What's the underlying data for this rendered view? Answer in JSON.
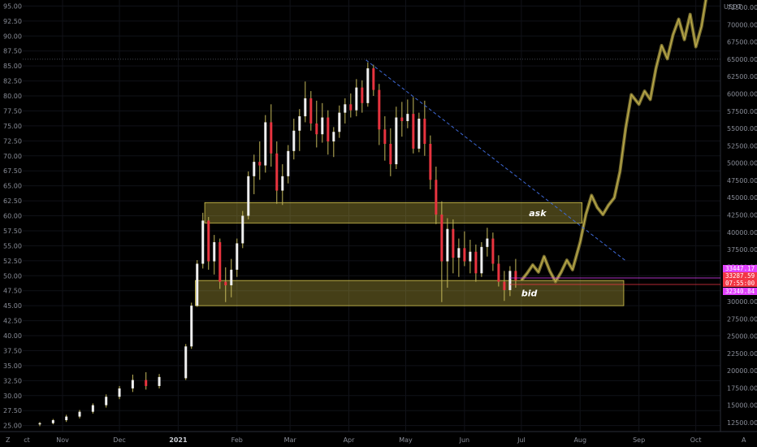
{
  "toolbar": {
    "currency": "USDT",
    "right_axis_marker": "A",
    "left_axis_marker": "Z"
  },
  "chart_data": {
    "type": "candlestick",
    "x": [
      "Nov",
      "Dec",
      "2021",
      "Feb",
      "Mar",
      "Apr",
      "May",
      "Jun",
      "Jul",
      "Aug",
      "Sep",
      "Oct"
    ],
    "x_ticks_bold": [
      "2021"
    ],
    "x_range": [
      "Oct 2020",
      "Oct 2021"
    ],
    "left_axis": {
      "ylim": [
        24,
        96
      ],
      "ticks": [
        "25.00",
        "27.50",
        "30.00",
        "32.50",
        "35.00",
        "37.50",
        "40.00",
        "42.50",
        "45.00",
        "47.50",
        "50.00",
        "52.50",
        "55.00",
        "57.50",
        "60.00",
        "62.50",
        "65.00",
        "67.50",
        "70.00",
        "72.50",
        "75.00",
        "77.50",
        "80.00",
        "82.50",
        "85.00",
        "87.50",
        "90.00",
        "92.50",
        "95.00"
      ]
    },
    "right_axis": {
      "ylim": [
        10000,
        75000
      ],
      "ticks": [
        "12500.00",
        "15000.00",
        "17500.00",
        "20000.00",
        "22500.00",
        "25000.00",
        "27500.00",
        "30000.00",
        "32500.00",
        "35000.00",
        "37500.00",
        "40000.00",
        "42500.00",
        "45000.00",
        "47500.00",
        "50000.00",
        "52500.00",
        "55000.00",
        "57500.00",
        "60000.00",
        "62500.00",
        "65000.00",
        "67500.00",
        "70000.00",
        "72500.00"
      ]
    },
    "price_tags": [
      {
        "value": "33447.17",
        "color": "#e040fb"
      },
      {
        "value": "33287.59",
        "color": "#f23645"
      },
      {
        "value": "07:55:00",
        "color": "#f23645"
      },
      {
        "value": "32340.84",
        "color": "#e040fb"
      }
    ],
    "zones": [
      {
        "label": "ask",
        "from": 58.8,
        "to": 62.2
      },
      {
        "label": "bid",
        "from": 45.0,
        "to": 49.2
      }
    ],
    "trendline": {
      "from": {
        "x": "Apr 10",
        "y": 86.0
      },
      "to": {
        "x": "Aug 25",
        "y": 52.5
      },
      "style": "dashed",
      "color": "#3f6ad8"
    },
    "reference_line": {
      "y": 65000,
      "axis": "right"
    },
    "candles_series": [
      {
        "d": "Oct 20",
        "o": 25.2,
        "h": 25.6,
        "l": 24.9,
        "c": 25.4
      },
      {
        "d": "Oct 27",
        "o": 25.4,
        "h": 26.1,
        "l": 25.2,
        "c": 25.9
      },
      {
        "d": "Nov 03",
        "o": 25.9,
        "h": 26.8,
        "l": 25.6,
        "c": 26.5
      },
      {
        "d": "Nov 10",
        "o": 26.5,
        "h": 27.6,
        "l": 26.2,
        "c": 27.3
      },
      {
        "d": "Nov 17",
        "o": 27.3,
        "h": 28.7,
        "l": 27.0,
        "c": 28.4
      },
      {
        "d": "Nov 24",
        "o": 28.4,
        "h": 30.2,
        "l": 28.0,
        "c": 29.8
      },
      {
        "d": "Dec 01",
        "o": 29.8,
        "h": 31.6,
        "l": 29.4,
        "c": 31.2
      },
      {
        "d": "Dec 08",
        "o": 31.2,
        "h": 33.5,
        "l": 30.6,
        "c": 32.6
      },
      {
        "d": "Dec 15",
        "o": 32.6,
        "h": 33.9,
        "l": 31.0,
        "c": 31.6
      },
      {
        "d": "Dec 22",
        "o": 31.6,
        "h": 33.6,
        "l": 31.2,
        "c": 33.1
      },
      {
        "d": "Dec 29",
        "o": 33.1,
        "h": 34.0,
        "l": 32.4,
        "c": 32.9
      },
      {
        "d": "Jan 05",
        "o": 32.9,
        "h": 38.6,
        "l": 32.6,
        "c": 38.2
      },
      {
        "d": "Jan 08",
        "o": 38.2,
        "h": 45.5,
        "l": 37.8,
        "c": 45.0
      },
      {
        "d": "Jan 11",
        "o": 45.0,
        "h": 52.6,
        "l": 44.8,
        "c": 52.0
      },
      {
        "d": "Jan 14",
        "o": 52.0,
        "h": 60.5,
        "l": 51.2,
        "c": 59.2
      },
      {
        "d": "Jan 17",
        "o": 59.2,
        "h": 59.8,
        "l": 51.0,
        "c": 52.4
      },
      {
        "d": "Jan 20",
        "o": 52.4,
        "h": 56.8,
        "l": 50.2,
        "c": 55.6
      },
      {
        "d": "Jan 23",
        "o": 55.6,
        "h": 56.2,
        "l": 47.8,
        "c": 49.0
      },
      {
        "d": "Jan 26",
        "o": 49.0,
        "h": 51.4,
        "l": 45.6,
        "c": 48.4
      },
      {
        "d": "Jan 29",
        "o": 48.4,
        "h": 52.8,
        "l": 46.4,
        "c": 51.0
      },
      {
        "d": "Feb 01",
        "o": 51.0,
        "h": 56.2,
        "l": 49.8,
        "c": 55.4
      },
      {
        "d": "Feb 04",
        "o": 55.4,
        "h": 60.8,
        "l": 54.6,
        "c": 60.0
      },
      {
        "d": "Feb 07",
        "o": 60.0,
        "h": 67.4,
        "l": 59.4,
        "c": 66.6
      },
      {
        "d": "Feb 10",
        "o": 66.6,
        "h": 70.2,
        "l": 63.6,
        "c": 69.0
      },
      {
        "d": "Feb 13",
        "o": 69.0,
        "h": 72.4,
        "l": 66.0,
        "c": 68.4
      },
      {
        "d": "Feb 16",
        "o": 68.4,
        "h": 76.8,
        "l": 67.2,
        "c": 75.6
      },
      {
        "d": "Feb 19",
        "o": 75.6,
        "h": 78.6,
        "l": 68.2,
        "c": 70.4
      },
      {
        "d": "Feb 22",
        "o": 70.4,
        "h": 72.4,
        "l": 62.0,
        "c": 64.2
      },
      {
        "d": "Feb 25",
        "o": 64.2,
        "h": 68.6,
        "l": 61.8,
        "c": 66.6
      },
      {
        "d": "Feb 28",
        "o": 66.6,
        "h": 71.8,
        "l": 65.4,
        "c": 70.8
      },
      {
        "d": "Mar 03",
        "o": 70.8,
        "h": 76.2,
        "l": 69.4,
        "c": 74.2
      },
      {
        "d": "Mar 06",
        "o": 74.2,
        "h": 77.8,
        "l": 70.8,
        "c": 76.6
      },
      {
        "d": "Mar 09",
        "o": 76.6,
        "h": 82.4,
        "l": 75.6,
        "c": 79.6
      },
      {
        "d": "Mar 12",
        "o": 79.6,
        "h": 80.8,
        "l": 74.2,
        "c": 75.4
      },
      {
        "d": "Mar 15",
        "o": 75.4,
        "h": 79.2,
        "l": 71.4,
        "c": 73.6
      },
      {
        "d": "Mar 18",
        "o": 73.6,
        "h": 78.8,
        "l": 72.2,
        "c": 76.4
      },
      {
        "d": "Mar 21",
        "o": 76.4,
        "h": 77.6,
        "l": 70.2,
        "c": 72.4
      },
      {
        "d": "Mar 24",
        "o": 72.4,
        "h": 74.8,
        "l": 69.8,
        "c": 74.0
      },
      {
        "d": "Mar 27",
        "o": 74.0,
        "h": 78.4,
        "l": 73.0,
        "c": 77.2
      },
      {
        "d": "Mar 30",
        "o": 77.2,
        "h": 79.6,
        "l": 75.4,
        "c": 78.6
      },
      {
        "d": "Apr 02",
        "o": 78.6,
        "h": 80.4,
        "l": 76.4,
        "c": 77.6
      },
      {
        "d": "Apr 05",
        "o": 77.6,
        "h": 82.8,
        "l": 76.6,
        "c": 81.4
      },
      {
        "d": "Apr 08",
        "o": 81.4,
        "h": 82.6,
        "l": 77.2,
        "c": 78.8
      },
      {
        "d": "Apr 11",
        "o": 78.8,
        "h": 85.6,
        "l": 78.2,
        "c": 84.6
      },
      {
        "d": "Apr 14",
        "o": 84.6,
        "h": 85.2,
        "l": 80.0,
        "c": 81.0
      },
      {
        "d": "Apr 17",
        "o": 81.0,
        "h": 82.0,
        "l": 71.8,
        "c": 74.4
      },
      {
        "d": "Apr 20",
        "o": 74.4,
        "h": 76.6,
        "l": 69.2,
        "c": 72.0
      },
      {
        "d": "Apr 23",
        "o": 72.0,
        "h": 74.6,
        "l": 66.6,
        "c": 68.6
      },
      {
        "d": "Apr 26",
        "o": 68.6,
        "h": 78.2,
        "l": 67.8,
        "c": 76.4
      },
      {
        "d": "Apr 29",
        "o": 76.4,
        "h": 79.0,
        "l": 73.2,
        "c": 75.8
      },
      {
        "d": "May 02",
        "o": 75.8,
        "h": 79.4,
        "l": 74.6,
        "c": 77.0
      },
      {
        "d": "May 05",
        "o": 77.0,
        "h": 79.8,
        "l": 70.4,
        "c": 71.2
      },
      {
        "d": "May 08",
        "o": 71.2,
        "h": 77.2,
        "l": 70.6,
        "c": 76.2
      },
      {
        "d": "May 11",
        "o": 76.2,
        "h": 79.2,
        "l": 70.0,
        "c": 72.0
      },
      {
        "d": "May 14",
        "o": 72.0,
        "h": 73.4,
        "l": 64.4,
        "c": 66.0
      },
      {
        "d": "May 17",
        "o": 66.0,
        "h": 68.2,
        "l": 58.6,
        "c": 60.2
      },
      {
        "d": "May 20",
        "o": 60.2,
        "h": 62.4,
        "l": 45.6,
        "c": 52.4
      },
      {
        "d": "May 23",
        "o": 52.4,
        "h": 59.6,
        "l": 48.0,
        "c": 57.8
      },
      {
        "d": "May 26",
        "o": 57.8,
        "h": 59.4,
        "l": 50.4,
        "c": 53.0
      },
      {
        "d": "May 29",
        "o": 53.0,
        "h": 56.2,
        "l": 49.8,
        "c": 54.6
      },
      {
        "d": "Jun 01",
        "o": 54.6,
        "h": 57.4,
        "l": 51.6,
        "c": 52.4
      },
      {
        "d": "Jun 04",
        "o": 52.4,
        "h": 56.0,
        "l": 50.4,
        "c": 54.0
      },
      {
        "d": "Jun 07",
        "o": 54.0,
        "h": 55.2,
        "l": 49.0,
        "c": 50.4
      },
      {
        "d": "Jun 10",
        "o": 50.4,
        "h": 55.6,
        "l": 49.8,
        "c": 54.8
      },
      {
        "d": "Jun 13",
        "o": 54.8,
        "h": 58.0,
        "l": 53.2,
        "c": 56.2
      },
      {
        "d": "Jun 16",
        "o": 56.2,
        "h": 57.2,
        "l": 50.8,
        "c": 52.0
      },
      {
        "d": "Jun 19",
        "o": 52.0,
        "h": 53.4,
        "l": 48.2,
        "c": 49.0
      },
      {
        "d": "Jun 22",
        "o": 49.0,
        "h": 50.8,
        "l": 45.8,
        "c": 47.6
      },
      {
        "d": "Jun 25",
        "o": 47.6,
        "h": 51.6,
        "l": 46.6,
        "c": 50.8
      },
      {
        "d": "Jun 28",
        "o": 50.8,
        "h": 52.8,
        "l": 48.0,
        "c": 49.2
      }
    ],
    "projection_series": [
      {
        "d": "Jul 01",
        "y": 49.2
      },
      {
        "d": "Jul 04",
        "y": 50.4
      },
      {
        "d": "Jul 07",
        "y": 51.8
      },
      {
        "d": "Jul 10",
        "y": 50.6
      },
      {
        "d": "Jul 13",
        "y": 53.2
      },
      {
        "d": "Jul 16",
        "y": 50.8
      },
      {
        "d": "Jul 19",
        "y": 49.0
      },
      {
        "d": "Jul 22",
        "y": 50.6
      },
      {
        "d": "Jul 25",
        "y": 52.6
      },
      {
        "d": "Jul 28",
        "y": 51.0
      },
      {
        "d": "Aug 01",
        "y": 55.6
      },
      {
        "d": "Aug 04",
        "y": 60.2
      },
      {
        "d": "Aug 07",
        "y": 63.4
      },
      {
        "d": "Aug 10",
        "y": 61.4
      },
      {
        "d": "Aug 13",
        "y": 60.2
      },
      {
        "d": "Aug 16",
        "y": 61.8
      },
      {
        "d": "Aug 19",
        "y": 63.0
      },
      {
        "d": "Aug 22",
        "y": 67.4
      },
      {
        "d": "Aug 25",
        "y": 74.6
      },
      {
        "d": "Aug 28",
        "y": 80.2
      },
      {
        "d": "Sep 01",
        "y": 78.6
      },
      {
        "d": "Sep 04",
        "y": 80.8
      },
      {
        "d": "Sep 07",
        "y": 79.4
      },
      {
        "d": "Sep 10",
        "y": 84.6
      },
      {
        "d": "Sep 13",
        "y": 88.4
      },
      {
        "d": "Sep 16",
        "y": 86.2
      },
      {
        "d": "Sep 19",
        "y": 90.2
      },
      {
        "d": "Sep 22",
        "y": 92.8
      },
      {
        "d": "Sep 25",
        "y": 89.4
      },
      {
        "d": "Sep 28",
        "y": 93.6
      },
      {
        "d": "Oct 01",
        "y": 88.2
      },
      {
        "d": "Oct 04",
        "y": 91.6
      },
      {
        "d": "Oct 07",
        "y": 97.4
      }
    ]
  }
}
